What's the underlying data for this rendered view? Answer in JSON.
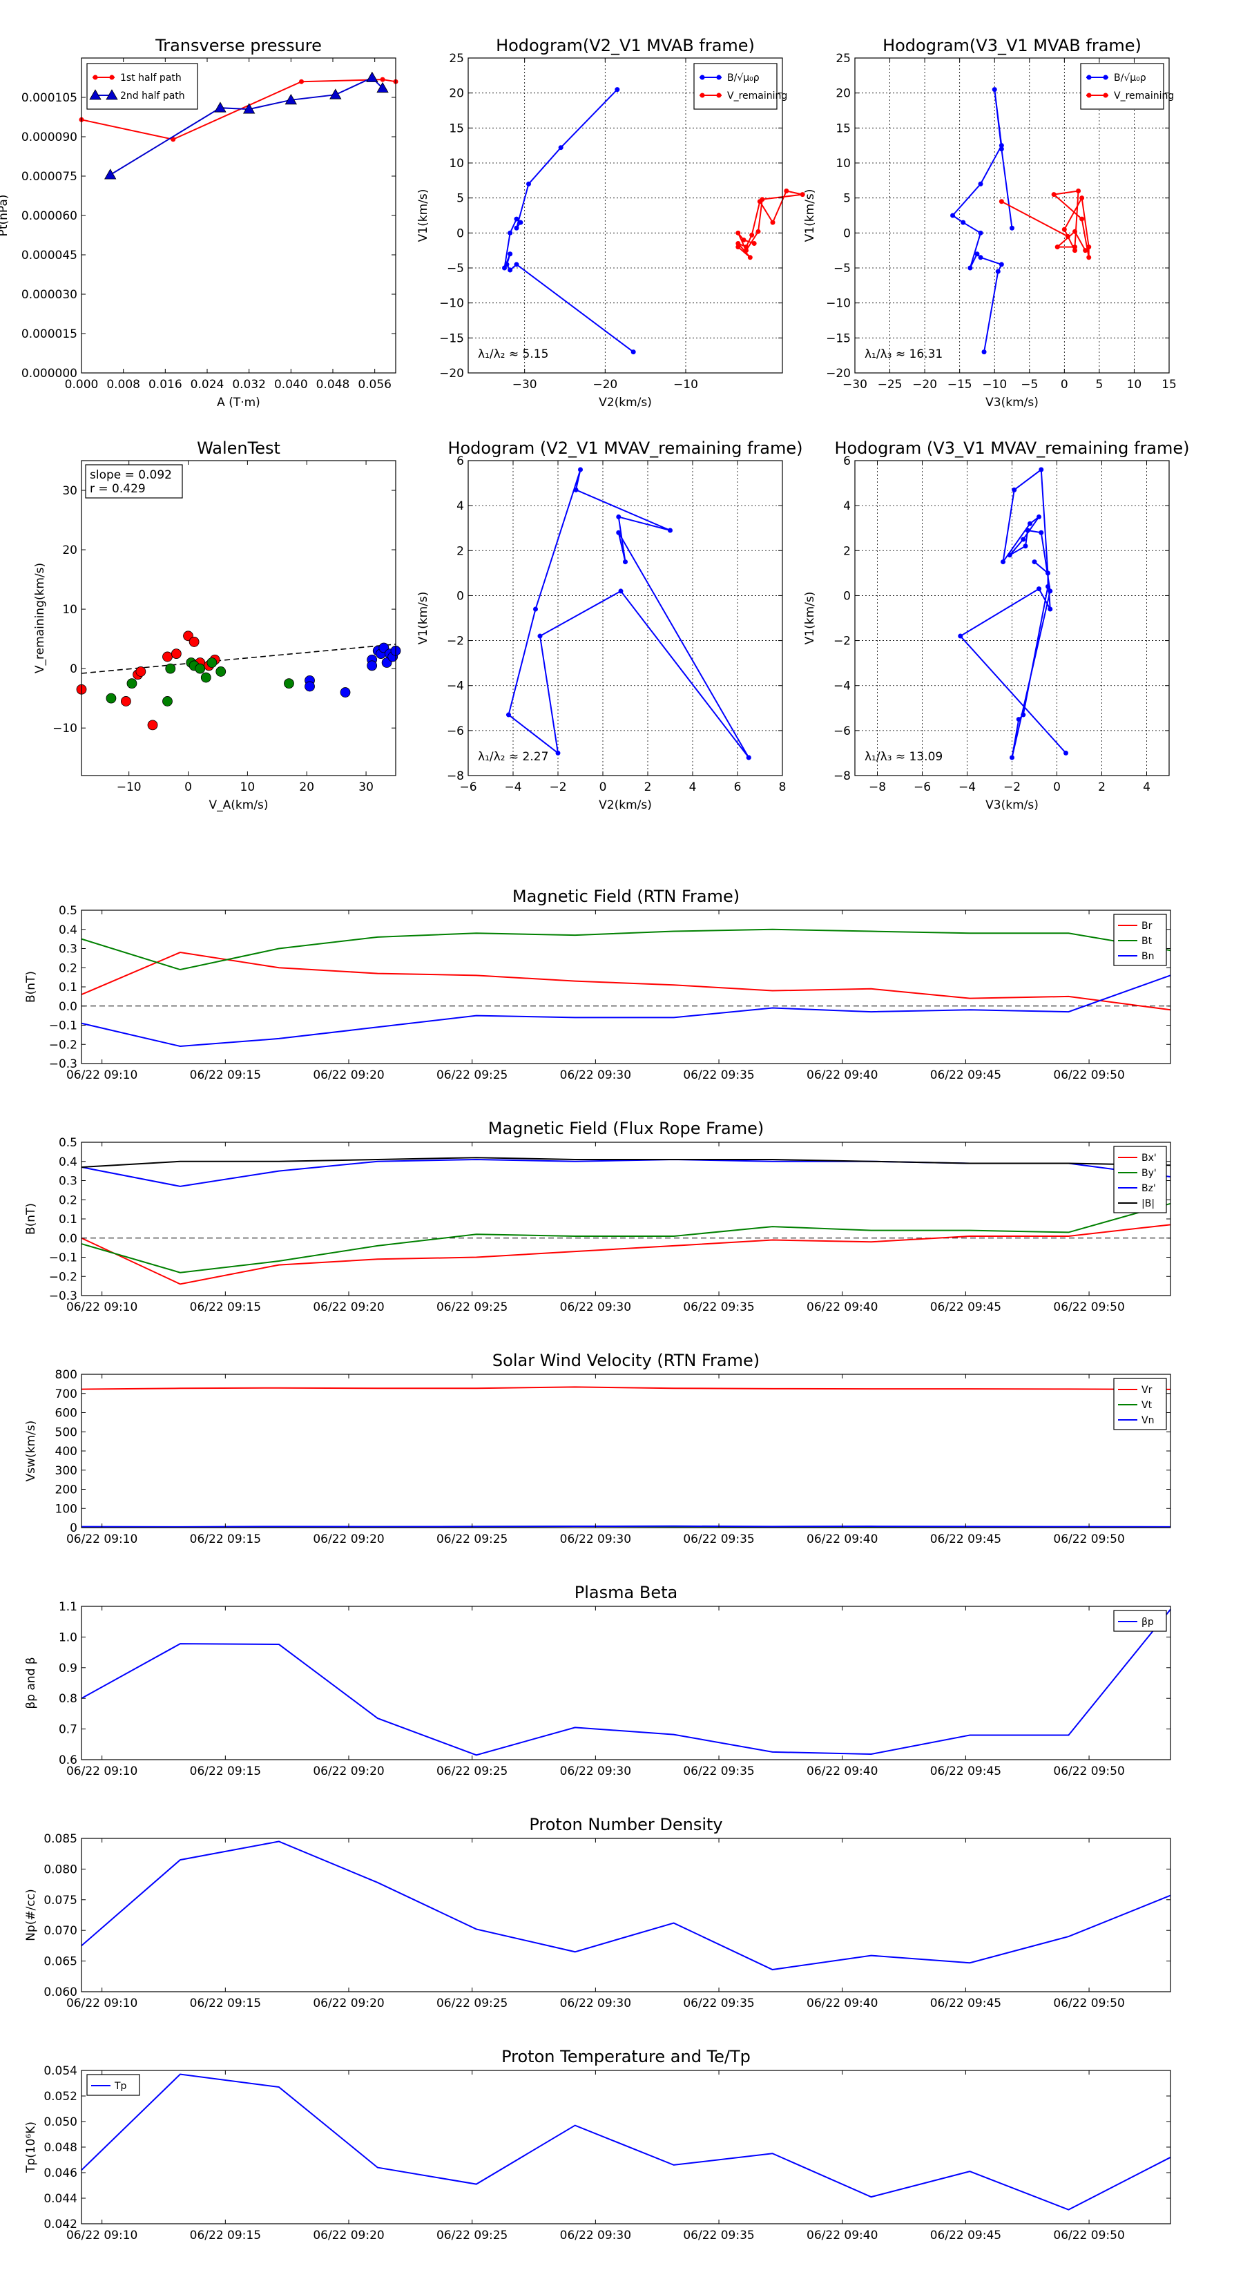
{
  "chart_data": [
    {
      "type": "scatter",
      "title": "Transverse pressure",
      "xlabel": "A (T·m)",
      "ylabel": "Pt(nPa)",
      "xlim": [
        0,
        0.06
      ],
      "ylim": [
        0,
        0.00012
      ],
      "xticks": [
        0,
        0.008,
        0.016,
        0.024,
        0.032,
        0.04,
        0.048,
        0.056
      ],
      "xtick_labels": [
        "0.000",
        "0.008",
        "0.016",
        "0.024",
        "0.032",
        "0.040",
        "0.048",
        "0.056"
      ],
      "yticks": [
        0,
        1.5e-05,
        3e-05,
        4.5e-05,
        6e-05,
        7.5e-05,
        9e-05,
        0.000105
      ],
      "ytick_labels": [
        "0.000000",
        "0.000015",
        "0.000030",
        "0.000045",
        "0.000060",
        "0.000075",
        "0.000090",
        "0.000105"
      ],
      "legend_loc": "top-left",
      "series": [
        {
          "name": "1st half path",
          "color": "#ff0000",
          "marker": "circle",
          "x": [
            0.0,
            0.0175,
            0.042,
            0.0575,
            0.06
          ],
          "y": [
            9.65e-05,
            8.9e-05,
            0.000111,
            0.0001118,
            0.000111
          ]
        },
        {
          "name": "2nd half path",
          "color": "#0000cc",
          "marker": "triangle",
          "x": [
            0.0055,
            0.0265,
            0.032,
            0.04,
            0.0485,
            0.0555,
            0.0575
          ],
          "y": [
            7.55e-05,
            0.000101,
            0.0001005,
            0.000104,
            0.000106,
            0.0001125,
            0.0001085
          ]
        }
      ]
    },
    {
      "type": "line",
      "title": "Hodogram(V2_V1 MVAB frame)",
      "xlabel": "V2(km/s)",
      "ylabel": "V1(km/s)",
      "xlim": [
        -37,
        2
      ],
      "ylim": [
        -20,
        25
      ],
      "xticks": [
        -30,
        -20,
        -10
      ],
      "xtick_labels": [
        "−30",
        "−20",
        "−10"
      ],
      "yticks": [
        -20,
        -15,
        -10,
        -5,
        0,
        5,
        10,
        15,
        20,
        25
      ],
      "ytick_labels": [
        "−20",
        "−15",
        "−10",
        "−5",
        "0",
        "5",
        "10",
        "15",
        "20",
        "25"
      ],
      "grid": true,
      "legend_loc": "top-right",
      "annotation": "λ₁/λ₂ ≈ 5.15",
      "series": [
        {
          "name": "B/√μ₀ρ",
          "color": "#0000ff",
          "x": [
            -16.5,
            -31.0,
            -31.8,
            -32.2,
            -31.8,
            -32.5,
            -31.8,
            -31.0,
            -30.5,
            -31.0,
            -29.5,
            -25.5,
            -18.5
          ],
          "y": [
            -17.0,
            -4.5,
            -5.3,
            -4.5,
            -3.0,
            -5.0,
            0.0,
            2.0,
            1.5,
            0.7,
            7.0,
            12.2,
            20.5
          ]
        },
        {
          "name": "V_remaining",
          "color": "#ff0000",
          "x": [
            -3.5,
            -2.0,
            -3.5,
            -2.5,
            -1.8,
            -0.8,
            0.8,
            2.5,
            4.5,
            -0.5,
            -1.0,
            -2.5,
            -3.5,
            -2.8,
            -1.5
          ],
          "y": [
            -2.0,
            -3.5,
            -1.5,
            -2.0,
            -0.3,
            4.5,
            1.5,
            6.0,
            5.5,
            4.8,
            0.2,
            -2.5,
            0.0,
            -1.0,
            -1.5
          ]
        }
      ]
    },
    {
      "type": "line",
      "title": "Hodogram(V3_V1 MVAB frame)",
      "xlabel": "V3(km/s)",
      "ylabel": "V1(km/s)",
      "xlim": [
        -30,
        15
      ],
      "ylim": [
        -20,
        25
      ],
      "xticks": [
        -30,
        -25,
        -20,
        -15,
        -10,
        -5,
        0,
        5,
        10,
        15
      ],
      "xtick_labels": [
        "−30",
        "−25",
        "−20",
        "−15",
        "−10",
        "−5",
        "0",
        "5",
        "10",
        "15"
      ],
      "yticks": [
        -20,
        -15,
        -10,
        -5,
        0,
        5,
        10,
        15,
        20,
        25
      ],
      "ytick_labels": [
        "−20",
        "−15",
        "−10",
        "−5",
        "0",
        "5",
        "10",
        "15",
        "20",
        "25"
      ],
      "grid": true,
      "legend_loc": "top-right",
      "annotation": "λ₁/λ₃ ≈ 16.31",
      "series": [
        {
          "name": "B/√μ₀ρ",
          "color": "#0000ff",
          "x": [
            -11.5,
            -9.5,
            -9.0,
            -12.0,
            -12.5,
            -13.5,
            -12.0,
            -14.5,
            -16.0,
            -12.0,
            -9.0,
            -10.0,
            -9.0,
            -7.5
          ],
          "y": [
            -17.0,
            -5.5,
            -4.5,
            -3.5,
            -3.0,
            -5.0,
            0.0,
            1.5,
            2.5,
            7.0,
            12.5,
            20.5,
            12.0,
            0.7
          ]
        },
        {
          "name": "V_remaining",
          "color": "#ff0000",
          "x": [
            -9.0,
            0.5,
            1.5,
            0.0,
            2.5,
            3.5,
            3.5,
            2.5,
            -1.5,
            2.0,
            1.5,
            -1.0,
            1.5,
            3.0
          ],
          "y": [
            4.5,
            -0.5,
            -2.5,
            0.5,
            5.0,
            -2.0,
            -3.5,
            2.0,
            5.5,
            6.0,
            -2.0,
            -2.0,
            0.2,
            -2.5
          ]
        }
      ]
    },
    {
      "type": "scatter",
      "title": "WalenTest",
      "xlabel": "V_A(km/s)",
      "ylabel": "V_remaining(km/s)",
      "xlim": [
        -18,
        35
      ],
      "ylim": [
        -18,
        35
      ],
      "xticks": [
        -10,
        0,
        10,
        20,
        30
      ],
      "xtick_labels": [
        "−10",
        "0",
        "10",
        "20",
        "30"
      ],
      "yticks": [
        -10,
        0,
        10,
        20,
        30
      ],
      "ytick_labels": [
        "−10",
        "0",
        "10",
        "20",
        "30"
      ],
      "annotation_lines": [
        "slope = 0.092",
        "r = 0.429"
      ],
      "fit_line": {
        "x": [
          -18,
          35
        ],
        "y": [
          -0.8,
          4.1
        ]
      },
      "series": [
        {
          "name": "",
          "color": "#ff0000",
          "x": [
            -18,
            -10.5,
            -8.5,
            -8.0,
            -6.0,
            -3.5,
            -2.0,
            0.0,
            1.0,
            2.0,
            3.5,
            4.5
          ],
          "y": [
            -3.5,
            -5.5,
            -1.0,
            -0.5,
            -9.5,
            2.0,
            2.5,
            5.5,
            4.5,
            1.0,
            0.5,
            1.5
          ]
        },
        {
          "name": "",
          "color": "#008000",
          "x": [
            -13.0,
            -9.5,
            -3.5,
            -3.0,
            0.5,
            1.0,
            2.0,
            3.0,
            4.0,
            5.5,
            17.0
          ],
          "y": [
            -5.0,
            -2.5,
            -5.5,
            0.0,
            1.0,
            0.5,
            0.0,
            -1.5,
            1.0,
            -0.5,
            -2.5
          ]
        },
        {
          "name": "",
          "color": "#0000ff",
          "x": [
            20.5,
            20.5,
            26.5,
            31.0,
            31.0,
            32.0,
            32.5,
            33.0,
            33.5,
            34.0,
            34.5,
            35.0
          ],
          "y": [
            -2.0,
            -3.0,
            -4.0,
            1.5,
            0.5,
            3.0,
            2.5,
            3.5,
            1.0,
            2.5,
            2.0,
            3.0
          ]
        }
      ]
    },
    {
      "type": "line",
      "title": "Hodogram (V2_V1 MVAV_remaining frame)",
      "xlabel": "V2(km/s)",
      "ylabel": "V1(km/s)",
      "xlim": [
        -6,
        8
      ],
      "ylim": [
        -8,
        6
      ],
      "xticks": [
        -6,
        -4,
        -2,
        0,
        2,
        4,
        6,
        8
      ],
      "xtick_labels": [
        "−6",
        "−4",
        "−2",
        "0",
        "2",
        "4",
        "6",
        "8"
      ],
      "yticks": [
        -8,
        -6,
        -4,
        -2,
        0,
        2,
        4,
        6
      ],
      "ytick_labels": [
        "−8",
        "−6",
        "−4",
        "−2",
        "0",
        "2",
        "4",
        "6"
      ],
      "grid": true,
      "annotation": "λ₁/λ₂ ≈ 2.27",
      "series": [
        {
          "name": "",
          "color": "#0000ff",
          "x": [
            6.5,
            0.8,
            -2.8,
            -2.0,
            -4.2,
            -3.0,
            -1.0,
            -1.2,
            3.0,
            0.7,
            1.0,
            0.7,
            6.5
          ],
          "y": [
            -7.2,
            0.2,
            -1.8,
            -7.0,
            -5.3,
            -0.6,
            5.6,
            4.7,
            2.9,
            3.5,
            1.5,
            2.8,
            -7.2
          ]
        }
      ]
    },
    {
      "type": "line",
      "title": "Hodogram (V3_V1 MVAV_remaining frame)",
      "xlabel": "V3(km/s)",
      "ylabel": "V1(km/s)",
      "xlim": [
        -9,
        5
      ],
      "ylim": [
        -8,
        6
      ],
      "xticks": [
        -8,
        -6,
        -4,
        -2,
        0,
        2,
        4
      ],
      "xtick_labels": [
        "−8",
        "−6",
        "−4",
        "−2",
        "0",
        "2",
        "4"
      ],
      "yticks": [
        -8,
        -6,
        -4,
        -2,
        0,
        2,
        4,
        6
      ],
      "ytick_labels": [
        "−8",
        "−6",
        "−4",
        "−2",
        "0",
        "2",
        "4",
        "6"
      ],
      "grid": true,
      "annotation": "λ₁/λ₃ ≈ 13.09",
      "series": [
        {
          "name": "",
          "color": "#0000ff",
          "x": [
            0.4,
            -4.3,
            -0.8,
            -0.3,
            -0.7,
            -1.9,
            -2.4,
            -1.2,
            -0.8,
            -1.5,
            -2.1,
            -1.4,
            -1.3,
            -0.7,
            -0.3,
            -2.0,
            -1.7,
            -1.5,
            -0.4,
            -0.4,
            -1.0
          ],
          "y": [
            -7.0,
            -1.8,
            0.3,
            -0.6,
            5.6,
            4.7,
            1.5,
            3.2,
            3.5,
            2.5,
            1.8,
            2.2,
            2.9,
            2.8,
            0.2,
            -7.2,
            -5.5,
            -5.3,
            0.4,
            1.0,
            1.5
          ]
        }
      ]
    },
    {
      "type": "line",
      "title": "Magnetic Field (RTN Frame)",
      "ylabel": "B(nT)",
      "ylim": [
        -0.3,
        0.5
      ],
      "yticks": [
        -0.3,
        -0.2,
        -0.1,
        0.0,
        0.1,
        0.2,
        0.3,
        0.4,
        0.5
      ],
      "ytick_labels": [
        "−0.3",
        "−0.2",
        "−0.1",
        "0.0",
        "0.1",
        "0.2",
        "0.3",
        "0.4",
        "0.5"
      ],
      "zero_line": true,
      "legend_loc": "top-right",
      "series": [
        {
          "name": "Br",
          "color": "#ff0000",
          "values": [
            0.06,
            0.28,
            0.2,
            0.17,
            0.16,
            0.13,
            0.11,
            0.08,
            0.09,
            0.04,
            0.05,
            -0.02
          ]
        },
        {
          "name": "Bt",
          "color": "#008000",
          "values": [
            0.35,
            0.19,
            0.3,
            0.36,
            0.38,
            0.37,
            0.39,
            0.4,
            0.39,
            0.38,
            0.38,
            0.29
          ]
        },
        {
          "name": "Bn",
          "color": "#0000ff",
          "values": [
            -0.09,
            -0.21,
            -0.17,
            -0.11,
            -0.05,
            -0.06,
            -0.06,
            -0.01,
            -0.03,
            -0.02,
            -0.03,
            0.16
          ]
        }
      ]
    },
    {
      "type": "line",
      "title": "Magnetic Field (Flux Rope Frame)",
      "ylabel": "B(nT)",
      "ylim": [
        -0.3,
        0.5
      ],
      "yticks": [
        -0.3,
        -0.2,
        -0.1,
        0.0,
        0.1,
        0.2,
        0.3,
        0.4,
        0.5
      ],
      "ytick_labels": [
        "−0.3",
        "−0.2",
        "−0.1",
        "0.0",
        "0.1",
        "0.2",
        "0.3",
        "0.4",
        "0.5"
      ],
      "zero_line": true,
      "legend_loc": "top-right",
      "series": [
        {
          "name": "Bx'",
          "color": "#ff0000",
          "values": [
            0.0,
            -0.24,
            -0.14,
            -0.11,
            -0.1,
            -0.07,
            -0.04,
            -0.01,
            -0.02,
            0.01,
            0.01,
            0.07
          ]
        },
        {
          "name": "By'",
          "color": "#008000",
          "values": [
            -0.03,
            -0.18,
            -0.12,
            -0.04,
            0.02,
            0.01,
            0.01,
            0.06,
            0.04,
            0.04,
            0.03,
            0.18
          ]
        },
        {
          "name": "Bz'",
          "color": "#0000ff",
          "values": [
            0.37,
            0.27,
            0.35,
            0.4,
            0.41,
            0.4,
            0.41,
            0.4,
            0.4,
            0.39,
            0.39,
            0.32
          ]
        },
        {
          "name": "|B|",
          "color": "#000000",
          "values": [
            0.37,
            0.4,
            0.4,
            0.41,
            0.42,
            0.41,
            0.41,
            0.41,
            0.4,
            0.39,
            0.39,
            0.38
          ]
        }
      ]
    },
    {
      "type": "line",
      "title": "Solar Wind Velocity (RTN Frame)",
      "ylabel": "Vsw(km/s)",
      "ylim": [
        0,
        800
      ],
      "yticks": [
        0,
        100,
        200,
        300,
        400,
        500,
        600,
        700,
        800
      ],
      "ytick_labels": [
        "0",
        "100",
        "200",
        "300",
        "400",
        "500",
        "600",
        "700",
        "800"
      ],
      "legend_loc": "top-right",
      "series": [
        {
          "name": "Vr",
          "color": "#ff0000",
          "values": [
            722,
            727,
            729,
            727,
            727,
            734,
            727,
            725,
            724,
            724,
            723,
            721
          ]
        },
        {
          "name": "Vt",
          "color": "#008000",
          "values": [
            2,
            3,
            4,
            5,
            6,
            7,
            6,
            5,
            4,
            3,
            2,
            2
          ]
        },
        {
          "name": "Vn",
          "color": "#0000ff",
          "values": [
            5,
            4,
            6,
            5,
            6,
            7,
            8,
            6,
            7,
            6,
            5,
            4
          ]
        }
      ]
    },
    {
      "type": "line",
      "title": "Plasma Beta",
      "ylabel": "βp and β",
      "ylim": [
        0.6,
        1.1
      ],
      "yticks": [
        0.6,
        0.7,
        0.8,
        0.9,
        1.0,
        1.1
      ],
      "ytick_labels": [
        "0.6",
        "0.7",
        "0.8",
        "0.9",
        "1.0",
        "1.1"
      ],
      "legend_loc": "top-right",
      "series": [
        {
          "name": "βp",
          "color": "#0000ff",
          "values": [
            0.8,
            0.978,
            0.976,
            0.735,
            0.615,
            0.705,
            0.682,
            0.625,
            0.618,
            0.68,
            0.68,
            1.09
          ]
        }
      ]
    },
    {
      "type": "line",
      "title": "Proton Number Density",
      "ylabel": "Np(#/cc)",
      "ylim": [
        0.06,
        0.085
      ],
      "yticks": [
        0.06,
        0.065,
        0.07,
        0.075,
        0.08,
        0.085
      ],
      "ytick_labels": [
        "0.060",
        "0.065",
        "0.070",
        "0.075",
        "0.080",
        "0.085"
      ],
      "series": [
        {
          "name": "",
          "color": "#0000ff",
          "values": [
            0.0675,
            0.0815,
            0.0845,
            0.0778,
            0.0702,
            0.0665,
            0.0712,
            0.0636,
            0.0659,
            0.0647,
            0.069,
            0.0757
          ]
        }
      ]
    },
    {
      "type": "line",
      "title": "Proton Temperature and Te/Tp",
      "ylabel": "Tp(10⁶K)",
      "ylim": [
        0.042,
        0.054
      ],
      "yticks": [
        0.042,
        0.044,
        0.046,
        0.048,
        0.05,
        0.052,
        0.054
      ],
      "ytick_labels": [
        "0.042",
        "0.044",
        "0.046",
        "0.048",
        "0.050",
        "0.052",
        "0.054"
      ],
      "legend_loc": "top-left",
      "series": [
        {
          "name": "Tp",
          "color": "#0000ff",
          "values": [
            0.0462,
            0.0537,
            0.0527,
            0.0464,
            0.0451,
            0.0497,
            0.0466,
            0.0475,
            0.0441,
            0.0461,
            0.0431,
            0.0472
          ]
        }
      ]
    }
  ],
  "time_axis": {
    "x_min": 9.17,
    "x_max": 53.3,
    "x_points": [
      9.17,
      13.17,
      17.17,
      21.17,
      25.17,
      29.17,
      33.17,
      37.17,
      41.17,
      45.17,
      49.17,
      53.3
    ],
    "tick_values": [
      10,
      15,
      20,
      25,
      30,
      35,
      40,
      45,
      50
    ],
    "tick_labels": [
      "06/22 09:10",
      "06/22 09:15",
      "06/22 09:20",
      "06/22 09:25",
      "06/22 09:30",
      "06/22 09:35",
      "06/22 09:40",
      "06/22 09:45",
      "06/22 09:50"
    ]
  }
}
